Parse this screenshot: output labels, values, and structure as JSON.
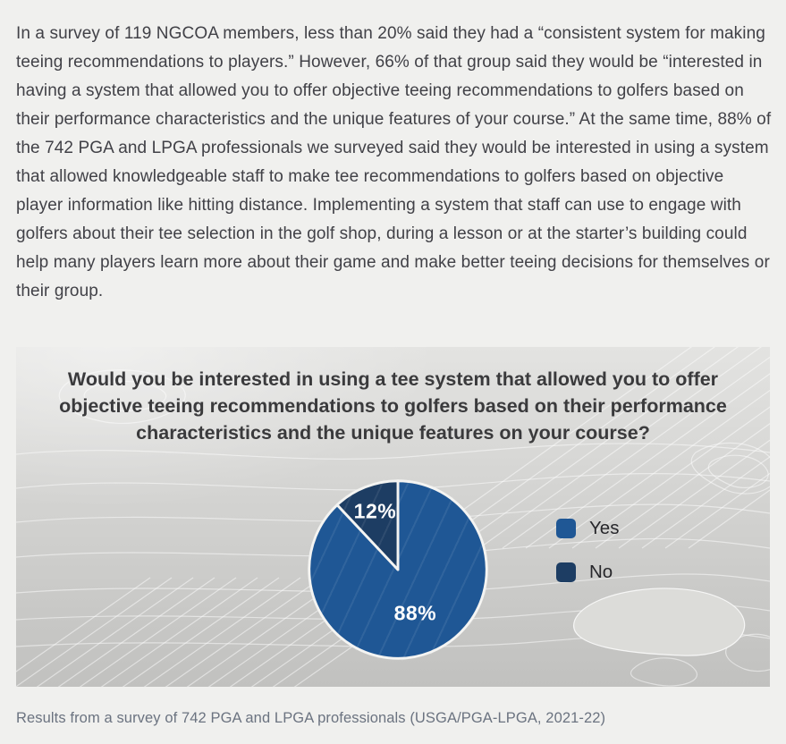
{
  "intro_paragraph": "In a survey of 119 NGCOA members, less than 20% said they had a “consistent system for making teeing recommendations to players.” However, 66% of that group said they would be “interested in having a system that allowed you to offer objective teeing recommendations to golfers based on their performance characteristics and the unique features of your course.” At the same time, 88% of the 742 PGA and LPGA professionals we surveyed said they would be interested in using a system that allowed knowledgeable staff to make tee recommendations to golfers based on objective player information like hitting distance. Implementing a system that staff can use to engage with golfers about their tee selection in the golf shop, during a lesson or at the starter’s building could help many players learn more about their game and make better teeing decisions for themselves or their group.",
  "chart_panel": {
    "title": "Would you be interested in using a tee system that allowed you to offer objective teeing recommendations to golfers based on their performance characteristics and the unique features on your course?"
  },
  "caption": "Results from a survey of 742 PGA and LPGA professionals (USGA/PGA-LPGA, 2021-22)",
  "chart_data": {
    "type": "pie",
    "title": "Would you be interested in using a tee system that allowed you to offer objective teeing recommendations to golfers based on their performance characteristics and the unique features on your course?",
    "categories": [
      "Yes",
      "No"
    ],
    "values": [
      88,
      12
    ],
    "labels": [
      "88%",
      "12%"
    ],
    "colors": [
      "#1F5795",
      "#1D3D63"
    ],
    "slice_stroke_color": "#f4f4f2",
    "start_angle_deg": 0,
    "direction": "clockwise",
    "legend_position": "right",
    "label_color": "#ffffff"
  }
}
